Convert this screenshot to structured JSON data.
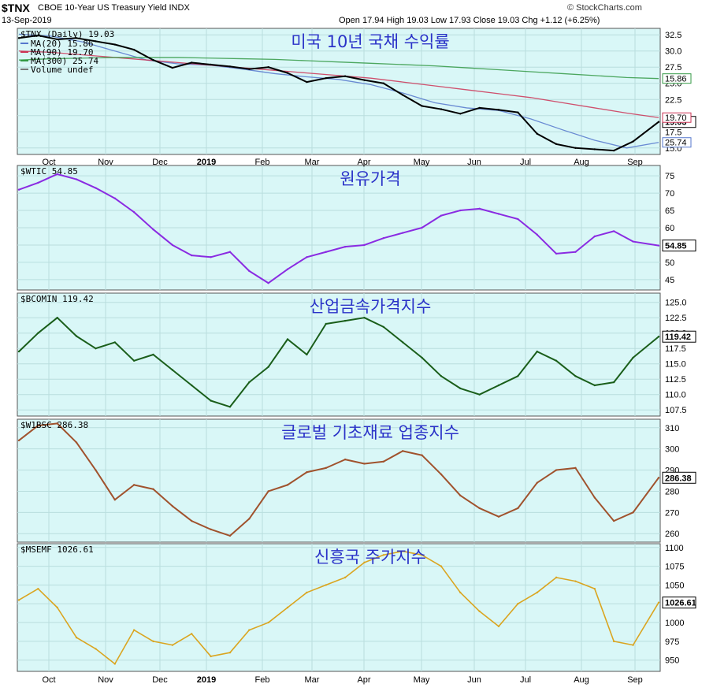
{
  "header": {
    "symbol": "$TNX",
    "description": "CBOE 10-Year US Treasury Yield INDX",
    "date": "13-Sep-2019",
    "ohlc_text": "Open 17.94  High 19.03  Low 17.93  Close 19.03  Chg +1.12 (+6.25%)",
    "credit": "© StockCharts.com"
  },
  "months": [
    "Oct",
    "Nov",
    "Dec",
    "2019",
    "Feb",
    "Mar",
    "Apr",
    "May",
    "Jun",
    "Jul",
    "Aug",
    "Sep"
  ],
  "colors": {
    "background": "#d9f7f7",
    "title": "#2a32c8",
    "grid": "#b9dede"
  },
  "chart_data": [
    {
      "type": "line",
      "title": "미국 10년 국채 수익률",
      "label": "$TNX (Daily) 19.03",
      "legend": [
        "MA(20) 15.86",
        "MA(90) 19.70",
        "MA(300) 25.74",
        "Volume undef"
      ],
      "legend_colors": [
        "#5577cc",
        "#cc3355",
        "#339944",
        "#777777"
      ],
      "yticks": [
        15.0,
        17.5,
        20.0,
        22.5,
        25.0,
        27.5,
        30.0,
        32.5
      ],
      "ylim": [
        14.0,
        33.5
      ],
      "last_value": "19.03",
      "last_labels": [
        "25.74",
        "19.70",
        "15.86"
      ],
      "color": "#000000",
      "x": [
        0,
        0.03,
        0.06,
        0.09,
        0.12,
        0.15,
        0.18,
        0.21,
        0.24,
        0.27,
        0.3,
        0.33,
        0.36,
        0.39,
        0.42,
        0.45,
        0.48,
        0.51,
        0.54,
        0.57,
        0.6,
        0.63,
        0.66,
        0.69,
        0.72,
        0.75,
        0.78,
        0.81,
        0.84,
        0.87,
        0.9,
        0.93,
        0.96,
        1.0
      ],
      "values": [
        32.0,
        32.4,
        31.8,
        32.0,
        31.5,
        31.0,
        30.2,
        28.6,
        27.4,
        28.2,
        27.9,
        27.6,
        27.2,
        27.5,
        26.6,
        25.2,
        25.8,
        26.1,
        25.5,
        25.0,
        23.2,
        21.5,
        21.0,
        20.3,
        21.2,
        20.9,
        20.5,
        17.2,
        15.6,
        15.0,
        14.8,
        14.6,
        16.0,
        19.03
      ],
      "ma_series": [
        {
          "values": [
            32.6,
            32.3,
            31.4,
            30.0,
            28.6,
            28.0,
            27.8,
            27.2,
            26.5,
            26.0,
            25.6,
            24.8,
            23.5,
            22.0,
            21.2,
            20.8,
            19.5,
            17.8,
            16.2,
            15.0,
            15.86
          ]
        },
        {
          "values": [
            30.0,
            29.8,
            29.4,
            29.0,
            28.6,
            28.2,
            27.8,
            27.4,
            27.0,
            26.6,
            26.2,
            25.8,
            25.2,
            24.6,
            24.0,
            23.4,
            22.8,
            22.0,
            21.2,
            20.4,
            19.7
          ]
        },
        {
          "values": [
            28.6,
            28.8,
            28.9,
            29.0,
            29.0,
            29.0,
            28.9,
            28.8,
            28.7,
            28.5,
            28.3,
            28.1,
            27.9,
            27.7,
            27.4,
            27.1,
            26.8,
            26.5,
            26.2,
            25.9,
            25.74
          ]
        }
      ]
    },
    {
      "type": "line",
      "title": "원유가격",
      "label": "$WTIC 54.85",
      "yticks": [
        45,
        50,
        55,
        60,
        65,
        70,
        75
      ],
      "ylim": [
        42,
        78
      ],
      "last_value": "54.85",
      "color": "#8a2be2",
      "x": [
        0,
        0.03,
        0.06,
        0.09,
        0.12,
        0.15,
        0.18,
        0.21,
        0.24,
        0.27,
        0.3,
        0.33,
        0.36,
        0.39,
        0.42,
        0.45,
        0.48,
        0.51,
        0.54,
        0.57,
        0.6,
        0.63,
        0.66,
        0.69,
        0.72,
        0.75,
        0.78,
        0.81,
        0.84,
        0.87,
        0.9,
        0.93,
        0.96,
        1.0
      ],
      "values": [
        71,
        73,
        75.5,
        74,
        71.5,
        68.5,
        64.5,
        59.5,
        55,
        52,
        51.5,
        53,
        47.5,
        44,
        48,
        51.5,
        53,
        54.5,
        55,
        57,
        58.5,
        60,
        63.5,
        65,
        65.5,
        64,
        62.5,
        58,
        52.5,
        53,
        57.5,
        59,
        56,
        54.85
      ]
    },
    {
      "type": "line",
      "title": "산업금속가격지수",
      "label": "$BCOMIN 119.42",
      "yticks": [
        107.5,
        110.0,
        112.5,
        115.0,
        117.5,
        120.0,
        122.5,
        125.0
      ],
      "ylim": [
        106.5,
        126.5
      ],
      "last_value": "119.42",
      "color": "#1a5e1a",
      "x": [
        0,
        0.03,
        0.06,
        0.09,
        0.12,
        0.15,
        0.18,
        0.21,
        0.24,
        0.27,
        0.3,
        0.33,
        0.36,
        0.39,
        0.42,
        0.45,
        0.48,
        0.51,
        0.54,
        0.57,
        0.6,
        0.63,
        0.66,
        0.69,
        0.72,
        0.75,
        0.78,
        0.81,
        0.84,
        0.87,
        0.9,
        0.93,
        0.96,
        1.0
      ],
      "values": [
        117,
        120,
        122.5,
        119.5,
        117.5,
        118.5,
        115.5,
        116.5,
        114,
        111.5,
        109,
        108,
        112,
        114.5,
        119,
        116.5,
        121.5,
        122,
        122.5,
        121,
        118.5,
        116,
        113,
        111,
        110,
        111.5,
        113,
        117,
        115.5,
        113,
        111.5,
        112,
        116,
        119.42
      ]
    },
    {
      "type": "line",
      "title": "글로벌 기초재료 업종지수",
      "label": "$W1BSC 286.38",
      "yticks": [
        260,
        270,
        280,
        290,
        300,
        310
      ],
      "ylim": [
        256,
        314
      ],
      "last_value": "286.38",
      "color": "#a0522d",
      "x": [
        0,
        0.03,
        0.06,
        0.09,
        0.12,
        0.15,
        0.18,
        0.21,
        0.24,
        0.27,
        0.3,
        0.33,
        0.36,
        0.39,
        0.42,
        0.45,
        0.48,
        0.51,
        0.54,
        0.57,
        0.6,
        0.63,
        0.66,
        0.69,
        0.72,
        0.75,
        0.78,
        0.81,
        0.84,
        0.87,
        0.9,
        0.93,
        0.96,
        1.0
      ],
      "values": [
        304,
        311,
        312,
        303,
        290,
        276,
        283,
        281,
        273,
        266,
        262,
        259,
        267,
        280,
        283,
        289,
        291,
        295,
        293,
        294,
        299,
        297,
        288,
        278,
        272,
        268,
        272,
        284,
        290,
        291,
        277,
        266,
        270,
        286.38
      ]
    },
    {
      "type": "line",
      "title": "신흥국 주가지수",
      "label": "$MSEMF 1026.61",
      "yticks": [
        950,
        975,
        1000,
        1025,
        1050,
        1075,
        1100
      ],
      "ylim": [
        935,
        1105
      ],
      "last_value": "1026.61",
      "color": "#daa520",
      "x": [
        0,
        0.03,
        0.06,
        0.09,
        0.12,
        0.15,
        0.18,
        0.21,
        0.24,
        0.27,
        0.3,
        0.33,
        0.36,
        0.39,
        0.42,
        0.45,
        0.48,
        0.51,
        0.54,
        0.57,
        0.6,
        0.63,
        0.66,
        0.69,
        0.72,
        0.75,
        0.78,
        0.81,
        0.84,
        0.87,
        0.9,
        0.93,
        0.96,
        1.0
      ],
      "values": [
        1030,
        1045,
        1020,
        980,
        965,
        945,
        990,
        975,
        970,
        985,
        955,
        960,
        990,
        1000,
        1020,
        1040,
        1050,
        1060,
        1080,
        1090,
        1095,
        1090,
        1075,
        1040,
        1015,
        995,
        1025,
        1040,
        1060,
        1055,
        1045,
        975,
        970,
        1026.61
      ]
    }
  ]
}
